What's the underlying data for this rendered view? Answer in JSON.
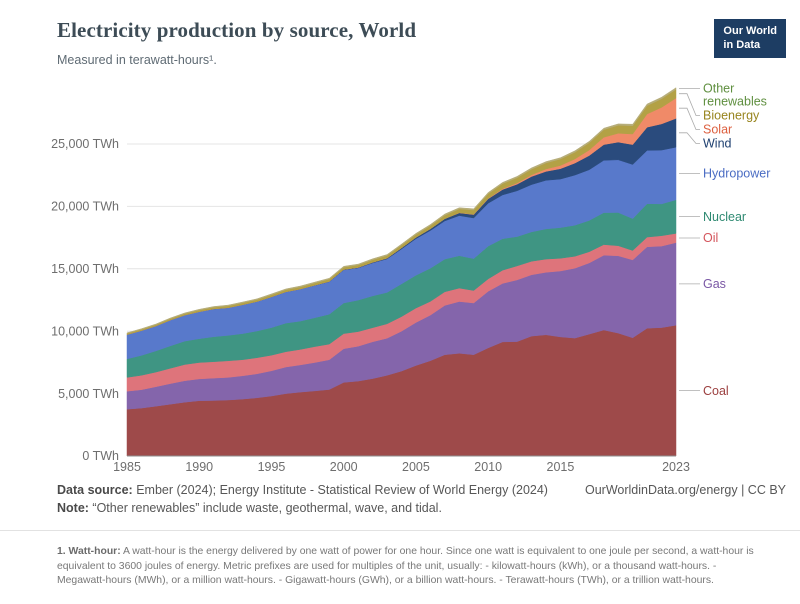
{
  "header": {
    "title": "Electricity production by source, World",
    "subtitle": "Measured in terawatt-hours¹.",
    "logo": {
      "line1": "Our World",
      "line2": "in Data"
    }
  },
  "chart_data": {
    "type": "area",
    "stacked": true,
    "title": "Electricity production by source, World",
    "subtitle": "Measured in terawatt-hours¹.",
    "unit": "TWh",
    "grid": true,
    "legend_position": "right",
    "xlim": [
      1985,
      2023
    ],
    "ylim": [
      0,
      29900
    ],
    "xticks": [
      1985,
      1990,
      1995,
      2000,
      2005,
      2010,
      2015,
      2023
    ],
    "yticks": [
      0,
      5000,
      10000,
      15000,
      20000,
      25000
    ],
    "ytick_labels": [
      "0 TWh",
      "5,000 TWh",
      "10,000 TWh",
      "15,000 TWh",
      "20,000 TWh",
      "25,000 TWh"
    ],
    "x": [
      1985,
      1986,
      1987,
      1988,
      1989,
      1990,
      1991,
      1992,
      1993,
      1994,
      1995,
      1996,
      1997,
      1998,
      1999,
      2000,
      2001,
      2002,
      2003,
      2004,
      2005,
      2006,
      2007,
      2008,
      2009,
      2010,
      2011,
      2012,
      2013,
      2014,
      2015,
      2016,
      2017,
      2018,
      2019,
      2020,
      2021,
      2022,
      2023
    ],
    "series": [
      {
        "name": "Coal",
        "color": "#9e4a4a",
        "label_color": "#9c4040",
        "values": [
          3750,
          3840,
          3990,
          4150,
          4310,
          4430,
          4450,
          4490,
          4560,
          4660,
          4810,
          5000,
          5120,
          5220,
          5330,
          5900,
          6000,
          6200,
          6470,
          6800,
          7250,
          7640,
          8120,
          8230,
          8120,
          8660,
          9140,
          9170,
          9610,
          9710,
          9540,
          9450,
          9770,
          10100,
          9850,
          9470,
          10240,
          10290,
          10480
        ]
      },
      {
        "name": "Gas",
        "color": "#8465ab",
        "label_color": "#7a57a5",
        "values": [
          1440,
          1470,
          1560,
          1650,
          1720,
          1750,
          1790,
          1810,
          1870,
          1930,
          2020,
          2130,
          2180,
          2270,
          2390,
          2700,
          2800,
          2950,
          2970,
          3200,
          3450,
          3650,
          3950,
          4150,
          4140,
          4540,
          4690,
          4940,
          4910,
          5010,
          5280,
          5600,
          5700,
          5990,
          6190,
          6240,
          6520,
          6530,
          6620
        ]
      },
      {
        "name": "Oil",
        "color": "#de747b",
        "label_color": "#d4555c",
        "values": [
          1110,
          1160,
          1170,
          1230,
          1300,
          1310,
          1320,
          1330,
          1290,
          1290,
          1250,
          1230,
          1240,
          1280,
          1250,
          1210,
          1170,
          1130,
          1150,
          1170,
          1150,
          1100,
          1090,
          1070,
          1000,
          990,
          1060,
          1120,
          1080,
          1060,
          1020,
          950,
          900,
          850,
          810,
          760,
          780,
          830,
          740
        ]
      },
      {
        "name": "Nuclear",
        "color": "#3f9583",
        "label_color": "#2f8a72",
        "values": [
          1480,
          1590,
          1700,
          1790,
          1880,
          1910,
          2000,
          2030,
          2090,
          2140,
          2210,
          2290,
          2270,
          2310,
          2390,
          2450,
          2520,
          2550,
          2520,
          2620,
          2630,
          2660,
          2620,
          2600,
          2560,
          2630,
          2520,
          2350,
          2360,
          2420,
          2460,
          2490,
          2510,
          2560,
          2660,
          2550,
          2680,
          2550,
          2690
        ]
      },
      {
        "name": "Hydropower",
        "color": "#5879cb",
        "label_color": "#4a6cc3",
        "values": [
          1950,
          1990,
          2000,
          2070,
          2080,
          2160,
          2220,
          2220,
          2310,
          2350,
          2460,
          2500,
          2560,
          2590,
          2610,
          2650,
          2580,
          2640,
          2680,
          2800,
          2930,
          3020,
          3060,
          3210,
          3250,
          3440,
          3510,
          3670,
          3790,
          3890,
          3890,
          4020,
          4060,
          4190,
          4220,
          4340,
          4270,
          4310,
          4210
        ]
      },
      {
        "name": "Wind",
        "color": "#2a4b7d",
        "label_color": "#1f4070",
        "values": [
          0,
          0,
          0,
          1,
          2,
          4,
          4,
          5,
          6,
          7,
          8,
          9,
          12,
          16,
          21,
          31,
          38,
          52,
          63,
          85,
          104,
          133,
          171,
          221,
          276,
          346,
          437,
          526,
          646,
          712,
          831,
          957,
          1136,
          1265,
          1420,
          1590,
          1860,
          2100,
          2310
        ]
      },
      {
        "name": "Solar",
        "color": "#f08a68",
        "label_color": "#dd5f3e",
        "values": [
          0,
          0,
          0,
          0,
          0,
          0,
          0,
          0,
          0,
          0,
          1,
          1,
          1,
          1,
          1,
          1,
          1,
          2,
          2,
          3,
          4,
          5,
          7,
          12,
          20,
          32,
          63,
          97,
          132,
          197,
          256,
          328,
          445,
          585,
          705,
          850,
          1050,
          1320,
          1630
        ]
      },
      {
        "name": "Bioenergy",
        "color": "#b3a145",
        "label_color": "#98851f",
        "values": [
          90,
          95,
          100,
          108,
          118,
          130,
          136,
          142,
          148,
          154,
          160,
          165,
          170,
          175,
          180,
          185,
          193,
          200,
          208,
          218,
          230,
          255,
          280,
          310,
          345,
          380,
          405,
          430,
          455,
          485,
          520,
          550,
          580,
          610,
          640,
          670,
          680,
          690,
          700
        ]
      },
      {
        "name": "Other renewables",
        "color": "#b6ad79",
        "label_color": "#5f8f3f",
        "values": [
          50,
          52,
          54,
          56,
          58,
          60,
          62,
          63,
          64,
          65,
          66,
          68,
          70,
          72,
          74,
          76,
          78,
          80,
          82,
          85,
          88,
          90,
          92,
          94,
          96,
          98,
          100,
          102,
          104,
          106,
          108,
          110,
          112,
          114,
          116,
          118,
          122,
          126,
          130
        ]
      }
    ]
  },
  "footer": {
    "source_label": "Data source:",
    "source_text": " Ember (2024); Energy Institute - Statistical Review of World Energy (2024)",
    "note_label": "Note:",
    "note_text": " “Other renewables” include waste, geothermal, wave, and tidal.",
    "attribution": "OurWorldinData.org/energy | CC BY"
  },
  "footnote": {
    "label": "1. Watt-hour:",
    "text": " A watt-hour is the energy delivered by one watt of power for one hour. Since one watt is equivalent to one joule per second, a watt-hour is equivalent to 3600 joules of energy. Metric prefixes are used for multiples of the unit, usually: - kilowatt-hours (kWh), or a thousand watt-hours. - Megawatt-hours (MWh), or a million watt-hours. - Gigawatt-hours (GWh), or a billion watt-hours. - Terawatt-hours (TWh), or a trillion watt-hours."
  }
}
